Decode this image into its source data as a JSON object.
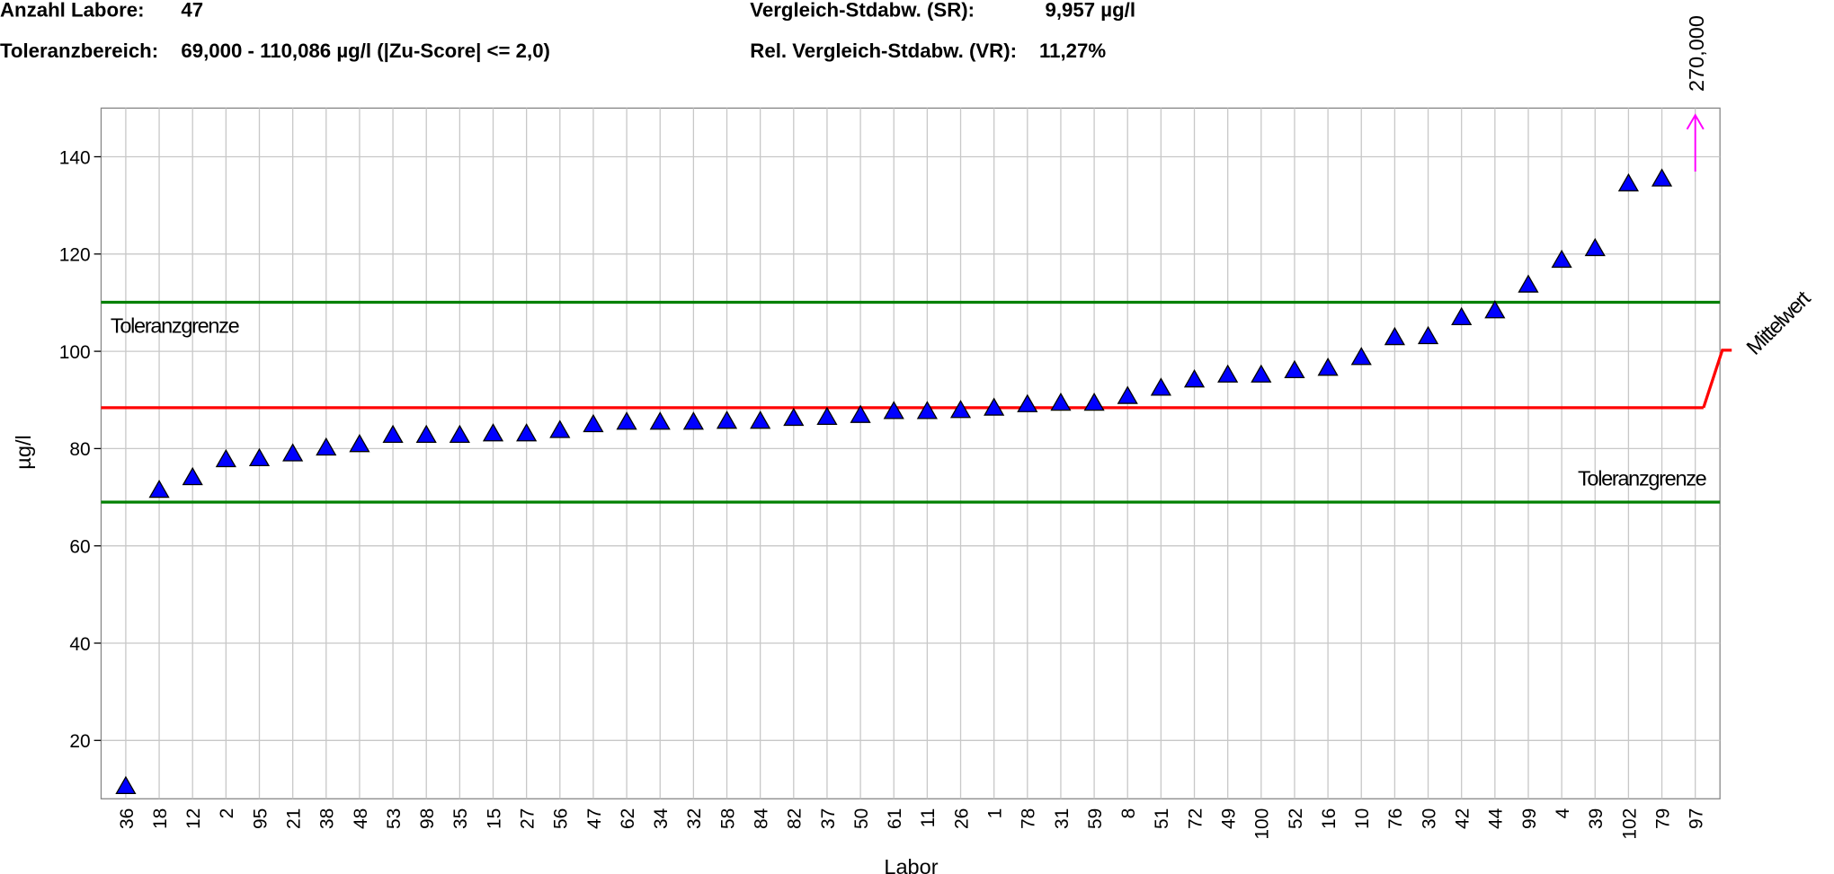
{
  "header": {
    "labs_label": "Anzahl Labore:",
    "labs_value": "47",
    "tolerance_label": "Toleranzbereich:",
    "tolerance_value": "69,000 - 110,086 µg/l (|Zu-Score| <= 2,0)",
    "sr_label": "Vergleich-Stdabw. (SR):",
    "sr_value": "9,957 µg/l",
    "vr_label": "Rel. Vergleich-Stdabw. (VR):",
    "vr_value": "11,27%"
  },
  "chart_data": {
    "type": "scatter",
    "xlabel": "Labor",
    "ylabel": "µg/l",
    "categories": [
      "36",
      "18",
      "12",
      "2",
      "95",
      "21",
      "38",
      "48",
      "53",
      "98",
      "35",
      "15",
      "27",
      "56",
      "47",
      "62",
      "34",
      "32",
      "58",
      "84",
      "82",
      "37",
      "50",
      "61",
      "11",
      "26",
      "1",
      "78",
      "31",
      "59",
      "8",
      "51",
      "72",
      "49",
      "100",
      "52",
      "16",
      "10",
      "76",
      "30",
      "42",
      "44",
      "99",
      "4",
      "39",
      "102",
      "79",
      "97"
    ],
    "series": [
      {
        "color": "#0000ff",
        "values": [
          10.3,
          71.2,
          73.8,
          77.5,
          77.7,
          78.7,
          79.9,
          80.6,
          82.5,
          82.5,
          82.5,
          82.8,
          82.8,
          83.5,
          84.7,
          85.2,
          85.2,
          85.2,
          85.4,
          85.4,
          86.0,
          86.2,
          86.6,
          87.4,
          87.4,
          87.6,
          88.1,
          88.8,
          89.1,
          89.1,
          90.5,
          92.2,
          93.9,
          94.9,
          94.9,
          95.8,
          96.3,
          98.5,
          102.6,
          102.8,
          106.7,
          108.1,
          113.4,
          118.5,
          120.9,
          134.2,
          135.2,
          null
        ]
      }
    ],
    "outlier": {
      "category_index": 47,
      "value": 270,
      "label": "270,000",
      "color": "#ff00ff"
    },
    "reference_lines": [
      {
        "name": "Toleranzgrenze",
        "value": 110.086,
        "color": "#008000"
      },
      {
        "name": "Mittelwert",
        "value": 88.4,
        "color": "#ff0000"
      },
      {
        "name": "Toleranzgrenze",
        "value": 69.0,
        "color": "#008000"
      }
    ],
    "ylim": [
      8,
      150
    ],
    "yticks": [
      20,
      40,
      60,
      80,
      100,
      120,
      140
    ],
    "grid": true
  }
}
